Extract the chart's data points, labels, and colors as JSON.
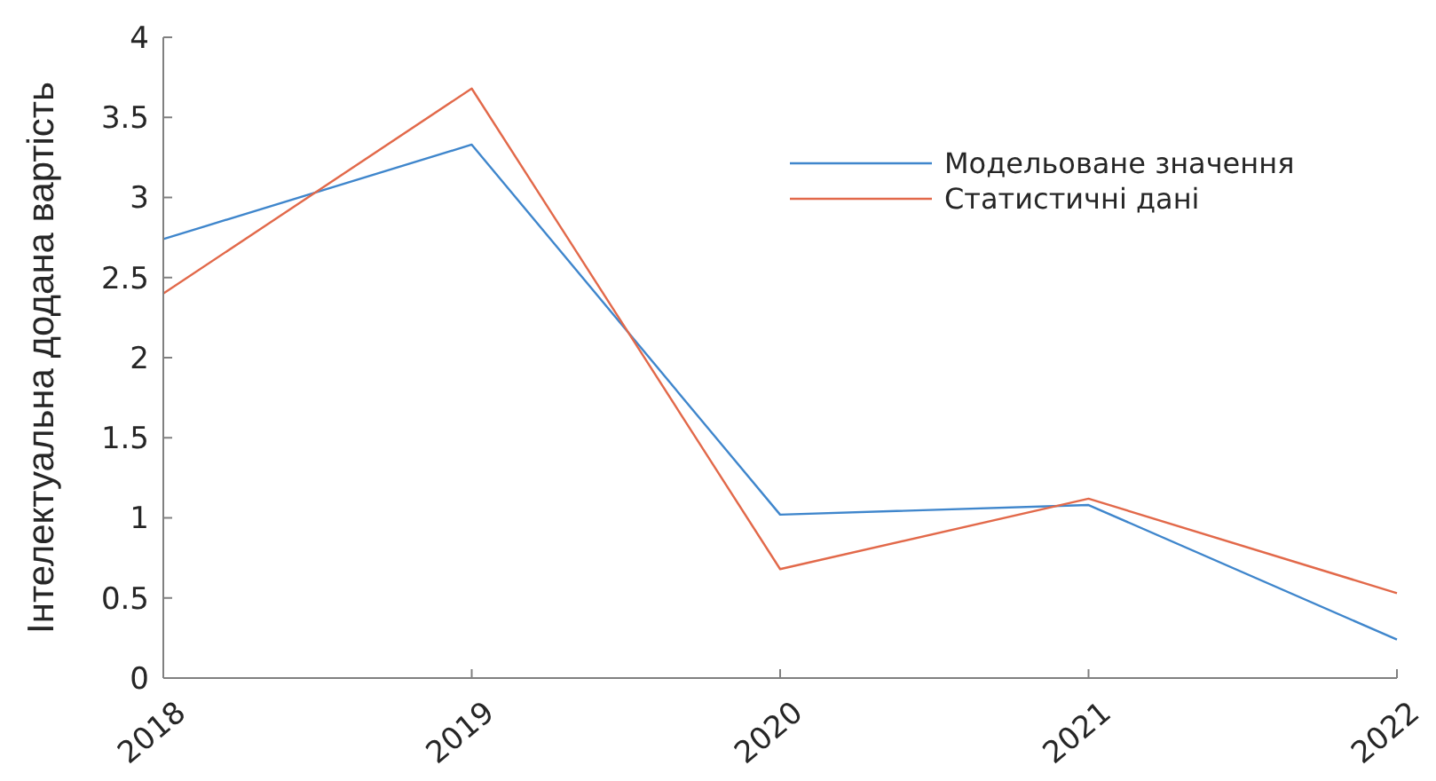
{
  "chart_data": {
    "type": "line",
    "ylabel": "Інтелектуальна додана вартість",
    "categories": [
      "2018",
      "2019",
      "2020",
      "2021",
      "2022"
    ],
    "series": [
      {
        "name": "Модельоване значення",
        "color": "#3f86cc",
        "values": [
          2.74,
          3.33,
          1.02,
          1.08,
          0.24
        ]
      },
      {
        "name": "Статистичні дані",
        "color": "#e2694a",
        "values": [
          2.4,
          3.68,
          0.68,
          1.12,
          0.53
        ]
      }
    ],
    "ylim": [
      0,
      4
    ],
    "yticks": [
      0,
      0.5,
      1,
      1.5,
      2,
      2.5,
      3,
      3.5,
      4
    ],
    "grid": false,
    "legend": "top right",
    "marker": "none",
    "line_style": "solid"
  }
}
